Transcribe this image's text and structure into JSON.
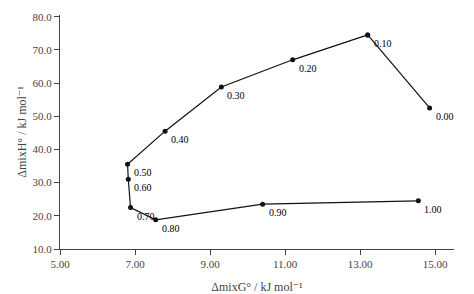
{
  "chart_data": {
    "type": "line",
    "x_label": "ΔmixG° / kJ mol⁻¹",
    "y_label": "ΔmixH° / kJ mol⁻¹",
    "series": [
      {
        "x": [
          13.2,
          11.2,
          9.3,
          7.8,
          6.8,
          6.82,
          6.88,
          7.55,
          10.4,
          14.55
        ],
        "values": [
          74.5,
          67.0,
          58.8,
          45.5,
          35.5,
          31.0,
          22.5,
          18.8,
          23.5,
          24.5
        ],
        "color": "#111111",
        "marker": "circle",
        "line_style": "solid"
      },
      {
        "x": [
          14.85,
          13.2
        ],
        "values": [
          52.5,
          74.5
        ],
        "color": "#111111",
        "marker": "circle",
        "line_style": "solid"
      }
    ],
    "annotations": [
      {
        "text": "0.10",
        "x": 13.2,
        "y": 74.5
      },
      {
        "text": "0.20",
        "x": 11.2,
        "y": 67.0
      },
      {
        "text": "0.30",
        "x": 9.3,
        "y": 58.8
      },
      {
        "text": "0.40",
        "x": 7.8,
        "y": 45.5
      },
      {
        "text": "0.50",
        "x": 6.8,
        "y": 35.5
      },
      {
        "text": "0.60",
        "x": 6.82,
        "y": 31.0
      },
      {
        "text": "0.70",
        "x": 6.88,
        "y": 22.5
      },
      {
        "text": "0.80",
        "x": 7.55,
        "y": 18.8
      },
      {
        "text": "0.90",
        "x": 10.4,
        "y": 23.5
      },
      {
        "text": "1.00",
        "x": 14.55,
        "y": 24.5
      },
      {
        "text": "0.00",
        "x": 14.85,
        "y": 52.5
      }
    ],
    "xlim": [
      5.0,
      15.5
    ],
    "ylim": [
      10.0,
      80.5
    ],
    "xticks": [
      {
        "value": 5.0,
        "label": "5.00"
      },
      {
        "value": 7.0,
        "label": "7.00"
      },
      {
        "value": 9.0,
        "label": "9.00"
      },
      {
        "value": 11.0,
        "label": "11.00"
      },
      {
        "value": 13.0,
        "label": "13.00"
      },
      {
        "value": 15.0,
        "label": "15.00"
      }
    ],
    "yticks": [
      {
        "value": 10.0,
        "label": "10.0"
      },
      {
        "value": 20.0,
        "label": "20.0"
      },
      {
        "value": 30.0,
        "label": "30.0"
      },
      {
        "value": 40.0,
        "label": "40.0"
      },
      {
        "value": 50.0,
        "label": "50.0"
      },
      {
        "value": 60.0,
        "label": "60.0"
      },
      {
        "value": 70.0,
        "label": "70.0"
      },
      {
        "value": 80.0,
        "label": "80.0"
      }
    ],
    "grid": false
  }
}
